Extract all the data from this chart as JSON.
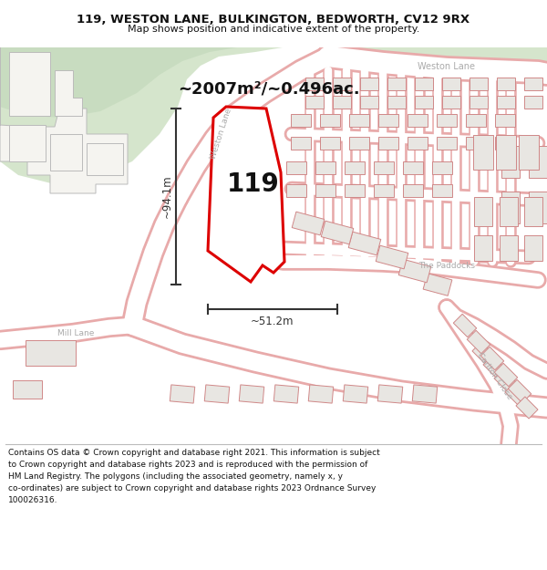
{
  "title_line1": "119, WESTON LANE, BULKINGTON, BEDWORTH, CV12 9RX",
  "title_line2": "Map shows position and indicative extent of the property.",
  "area_text": "~2007m²/~0.496ac.",
  "number_text": "119",
  "height_label": "~94.1m",
  "width_label": "~51.2m",
  "footer_lines": [
    "Contains OS data © Crown copyright and database right 2021. This information is subject",
    "to Crown copyright and database rights 2023 and is reproduced with the permission of",
    "HM Land Registry. The polygons (including the associated geometry, namely x, y",
    "co-ordinates) are subject to Crown copyright and database rights 2023 Ordnance Survey",
    "100026316."
  ],
  "map_bg": "#f2f0ec",
  "road_fill": "#ffffff",
  "road_edge": "#e8aaaa",
  "green1": "#d5e5cc",
  "green2": "#c8dcc0",
  "building_fill": "#e8e6e2",
  "building_edge": "#d08888",
  "plot_fill": "#ffffff",
  "plot_edge": "#dd0000",
  "dim_color": "#333333",
  "text_color": "#111111",
  "label_road_color": "#aaaaaa",
  "title_fontsize": 9.5,
  "subtitle_fontsize": 8.0,
  "area_fontsize": 13,
  "num_fontsize": 20,
  "dim_fontsize": 8.5,
  "footer_fontsize": 6.5
}
